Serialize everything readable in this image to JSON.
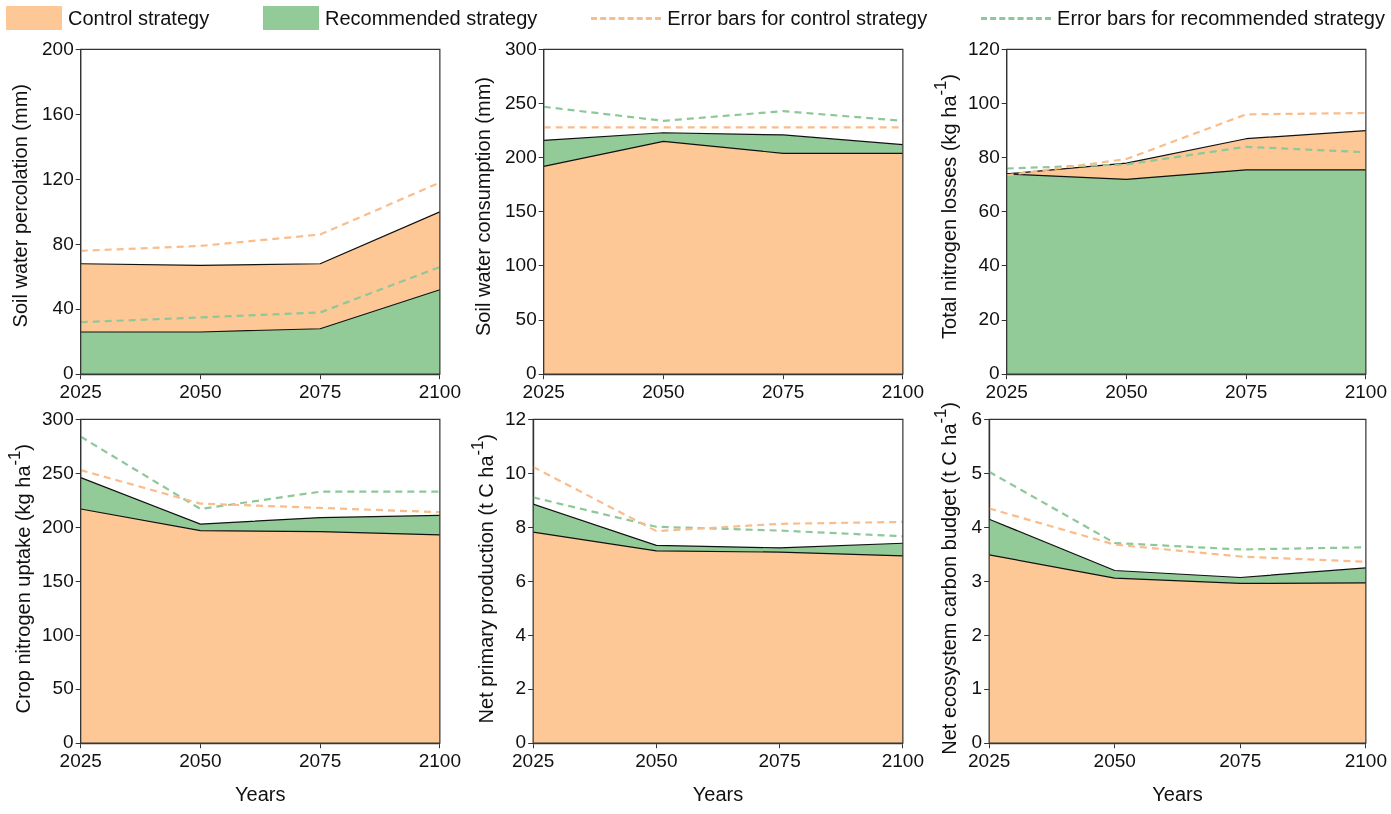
{
  "chart_data": [
    {
      "type": "area",
      "ylabel": "Soil water percolation (mm)",
      "x": [
        2025,
        2050,
        2075,
        2100
      ],
      "xlim": [
        2025,
        2100
      ],
      "xticks": [
        2025,
        2050,
        2075,
        2100
      ],
      "ylim": [
        0,
        200
      ],
      "yticks": [
        0,
        40,
        80,
        120,
        160,
        200
      ],
      "marker": "none",
      "legend": "top",
      "series": [
        {
          "name": "Control strategy",
          "color": "#fdc896",
          "values": [
            68,
            67,
            68,
            100
          ]
        },
        {
          "name": "Recommended strategy",
          "color": "#92cb97",
          "values": [
            26,
            26,
            28,
            52
          ]
        },
        {
          "name": "Error bars for control strategy",
          "type": "line",
          "line_style": "dashed",
          "color": "#f9bd8c",
          "values": [
            76,
            79,
            86,
            118
          ]
        },
        {
          "name": "Error bars for recommended strategy",
          "type": "line",
          "line_style": "dashed",
          "color": "#8ec79a",
          "values": [
            32,
            35,
            38,
            66
          ]
        }
      ]
    },
    {
      "type": "area",
      "ylabel": "Soil water consumption (mm)",
      "x": [
        2025,
        2050,
        2075,
        2100
      ],
      "xlim": [
        2025,
        2100
      ],
      "xticks": [
        2025,
        2050,
        2075,
        2100
      ],
      "ylim": [
        0,
        300
      ],
      "yticks": [
        0,
        50,
        100,
        150,
        200,
        250,
        300
      ],
      "marker": "none",
      "series": [
        {
          "color": "#fdc896",
          "values": [
            192,
            215,
            204,
            204
          ]
        },
        {
          "color": "#92cb97",
          "values": [
            216,
            223,
            221,
            212
          ]
        },
        {
          "type": "line",
          "line_style": "dashed",
          "color": "#f9bd8c",
          "values": [
            228,
            228,
            228,
            228
          ]
        },
        {
          "type": "line",
          "line_style": "dashed",
          "color": "#8ec79a",
          "values": [
            247,
            234,
            243,
            234
          ]
        }
      ]
    },
    {
      "type": "area",
      "ylabel": "Total nitrogen losses (kg ha$^{-1}$)",
      "x": [
        2025,
        2050,
        2075,
        2100
      ],
      "xlim": [
        2025,
        2100
      ],
      "xticks": [
        2025,
        2050,
        2075,
        2100
      ],
      "ylim": [
        0,
        120
      ],
      "yticks": [
        0,
        20,
        40,
        60,
        80,
        100,
        120
      ],
      "marker": "none",
      "series": [
        {
          "color": "#fdc896",
          "values": [
            74,
            78,
            87,
            90
          ]
        },
        {
          "color": "#92cb97",
          "values": [
            74,
            72,
            75.5,
            75.5
          ]
        },
        {
          "type": "line",
          "line_style": "dashed",
          "color": "#f9bd8c",
          "values": [
            73.5,
            79.5,
            96,
            96.5
          ]
        },
        {
          "type": "line",
          "line_style": "dashed",
          "color": "#8ec79a",
          "values": [
            76,
            77.5,
            84,
            82
          ]
        }
      ]
    },
    {
      "type": "area",
      "ylabel": "Crop nitrogen uptake (kg ha$^{-1}$)",
      "xlabel": "Years",
      "x": [
        2025,
        2050,
        2075,
        2100
      ],
      "xlim": [
        2025,
        2100
      ],
      "xticks": [
        2025,
        2050,
        2075,
        2100
      ],
      "ylim": [
        0,
        300
      ],
      "yticks": [
        0,
        50,
        100,
        150,
        200,
        250,
        300
      ],
      "marker": "none",
      "series": [
        {
          "color": "#fdc896",
          "values": [
            217,
            197,
            196,
            193
          ]
        },
        {
          "color": "#92cb97",
          "values": [
            246,
            203,
            209,
            211
          ]
        },
        {
          "type": "line",
          "line_style": "dashed",
          "color": "#f9bd8c",
          "values": [
            253,
            222,
            218,
            214
          ]
        },
        {
          "type": "line",
          "line_style": "dashed",
          "color": "#8ec79a",
          "values": [
            284,
            217,
            233,
            233
          ]
        }
      ]
    },
    {
      "type": "area",
      "ylabel": "Net primary production (t C ha$^{-1}$)",
      "xlabel": "Years",
      "x": [
        2025,
        2050,
        2075,
        2100
      ],
      "xlim": [
        2025,
        2100
      ],
      "xticks": [
        2025,
        2050,
        2075,
        2100
      ],
      "ylim": [
        0,
        12
      ],
      "yticks": [
        0,
        2,
        4,
        6,
        8,
        10,
        12
      ],
      "marker": "none",
      "series": [
        {
          "color": "#fdc896",
          "values": [
            7.82,
            7.13,
            7.08,
            6.94
          ]
        },
        {
          "color": "#92cb97",
          "values": [
            8.86,
            7.33,
            7.24,
            7.41
          ]
        },
        {
          "type": "line",
          "line_style": "dashed",
          "color": "#f9bd8c",
          "values": [
            10.24,
            7.86,
            8.13,
            8.2
          ]
        },
        {
          "type": "line",
          "line_style": "dashed",
          "color": "#8ec79a",
          "values": [
            9.11,
            8.02,
            7.88,
            7.67
          ]
        }
      ]
    },
    {
      "type": "area",
      "ylabel": "Net ecosystem carbon budget (t C ha$^{-1}$)",
      "xlabel": "Years",
      "x": [
        2025,
        2050,
        2075,
        2100
      ],
      "xlim": [
        2025,
        2100
      ],
      "xticks": [
        2025,
        2050,
        2075,
        2100
      ],
      "ylim": [
        0,
        6
      ],
      "yticks": [
        0,
        1,
        2,
        3,
        4,
        5,
        6
      ],
      "marker": "none",
      "series": [
        {
          "color": "#fdc896",
          "values": [
            3.49,
            3.06,
            2.96,
            2.97
          ]
        },
        {
          "color": "#92cb97",
          "values": [
            4.15,
            3.2,
            3.07,
            3.25
          ]
        },
        {
          "type": "line",
          "line_style": "dashed",
          "color": "#f9bd8c",
          "values": [
            4.35,
            3.68,
            3.46,
            3.36
          ]
        },
        {
          "type": "line",
          "line_style": "dashed",
          "color": "#8ec79a",
          "values": [
            5.03,
            3.71,
            3.59,
            3.63
          ]
        }
      ]
    }
  ]
}
